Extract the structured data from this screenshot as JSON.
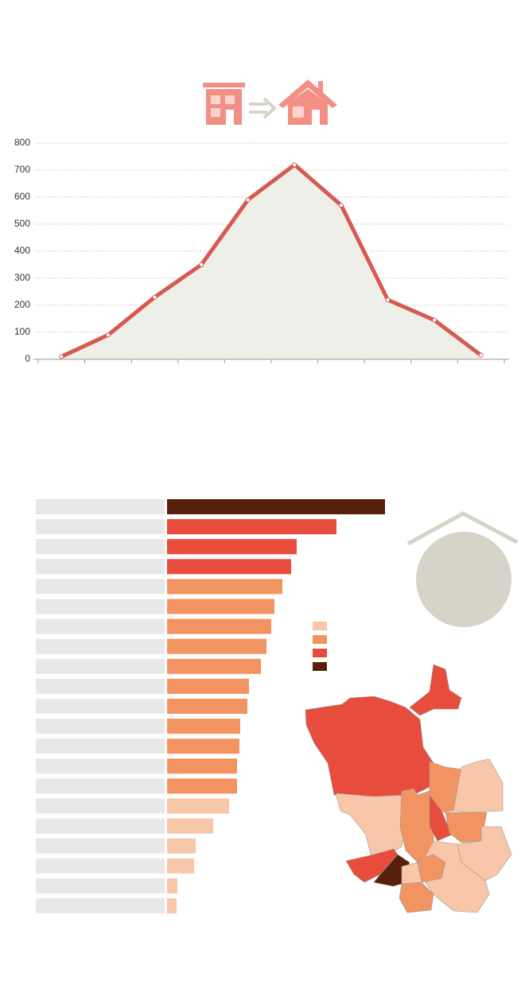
{
  "chart_data": [
    {
      "type": "line",
      "categories": [
        null,
        null,
        null,
        null,
        null,
        null,
        null,
        null,
        null,
        null
      ],
      "values": [
        10,
        90,
        230,
        350,
        590,
        720,
        570,
        220,
        145,
        15
      ],
      "color": "#d65a52",
      "fill": "#efefea",
      "ylim": [
        0,
        800
      ],
      "yticks": [
        0,
        100,
        200,
        300,
        400,
        500,
        600,
        700,
        800
      ],
      "grid": true
    },
    {
      "type": "hbar",
      "categories": [
        null,
        null,
        null,
        null,
        null,
        null,
        null,
        null,
        null,
        null,
        null,
        null,
        null,
        null,
        null,
        null,
        null,
        null,
        null,
        null,
        null
      ],
      "values": [
        274,
        213,
        163,
        156,
        145,
        135,
        131,
        125,
        118,
        103,
        101,
        92,
        91,
        88,
        88,
        78,
        58,
        36,
        34,
        13,
        12
      ],
      "colors": [
        "#56200a",
        "#e84c3d",
        "#e84c3d",
        "#e84c3d",
        "#f29461",
        "#f29461",
        "#f29461",
        "#f29461",
        "#f29461",
        "#f29461",
        "#f29461",
        "#f29461",
        "#f29461",
        "#f29461",
        "#f29461",
        "#f8c6a9",
        "#f8c6a9",
        "#f8c6a9",
        "#f8c6a9",
        "#f8c6a9",
        "#f8c6a9"
      ],
      "legend_colors": [
        "#f8c6a9",
        "#f29461",
        "#e84c3d",
        "#56200a"
      ]
    }
  ]
}
